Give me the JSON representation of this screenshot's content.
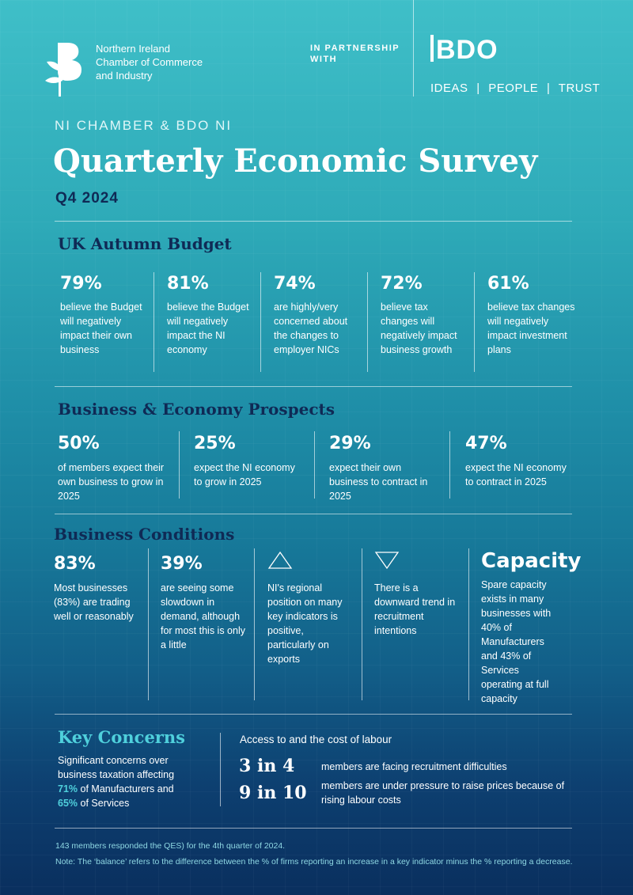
{
  "header": {
    "logo_line1": "Northern Ireland",
    "logo_line2": "Chamber of Commerce",
    "logo_line3": "and Industry",
    "partnership_line1": "IN PARTNERSHIP",
    "partnership_line2": "WITH",
    "bdo_logo": "BDO",
    "tagline_ideas": "IDEAS",
    "tagline_people": "PEOPLE",
    "tagline_trust": "TRUST",
    "tagline_separator": "|"
  },
  "kicker": "NI CHAMBER & BDO NI",
  "title": "Quarterly Economic Survey",
  "quarter": "Q4 2024",
  "budget": {
    "title": "UK Autumn Budget",
    "items": [
      {
        "value": "79%",
        "text": "believe the Budget will negatively impact their own business"
      },
      {
        "value": "81%",
        "text": "believe the Budget will negatively impact the NI economy"
      },
      {
        "value": "74%",
        "text": "are highly/very concerned about the changes to employer NICs"
      },
      {
        "value": "72%",
        "text": "believe tax changes will negatively impact business growth"
      },
      {
        "value": "61%",
        "text": "believe tax changes will negatively impact investment plans"
      }
    ]
  },
  "prospects": {
    "title": "Business & Economy Prospects",
    "items": [
      {
        "value": "50%",
        "text": "of members expect their own business to grow in 2025"
      },
      {
        "value": "25%",
        "text": "expect the NI economy to grow in 2025"
      },
      {
        "value": "29%",
        "text": "expect their own business to contract in 2025"
      },
      {
        "value": "47%",
        "text": "expect the NI economy to contract in 2025"
      }
    ]
  },
  "conditions": {
    "title": "Business Conditions",
    "items": [
      {
        "value": "83%",
        "text": "Most businesses (83%) are trading well or reasonably"
      },
      {
        "value": "39%",
        "text": "are seeing some slowdown in demand, although for most this is only a little"
      },
      {
        "icon": "up-triangle-icon",
        "text": "NI's regional position on many key indicators is positive, particularly on exports"
      },
      {
        "icon": "down-triangle-icon",
        "text": "There is a downward trend in recruitment intentions"
      },
      {
        "value": "Capacity",
        "text": "Spare capacity exists in many businesses with 40% of Manufacturers and 43% of Services operating at full capacity"
      }
    ]
  },
  "concerns": {
    "title": "Key Concerns",
    "text_pre": "Significant concerns over business taxation affecting",
    "pct1": "71%",
    "text_mid": "of Manufacturers and",
    "pct2": "65%",
    "text_post": "of Services",
    "labour_heading": "Access to and the cost of labour",
    "ratio1": "3 in 4",
    "ratio1_text": "members are facing recruitment difficulties",
    "ratio2": "9 in 10",
    "ratio2_text": "members are under pressure to raise prices because of rising labour costs"
  },
  "footer": {
    "note1": "143 members responded the QES) for the 4th quarter of 2024.",
    "note2": "Note: The ‘balance’ refers to the difference between the % of firms reporting an increase in a key indicator minus the % reporting a decrease."
  }
}
